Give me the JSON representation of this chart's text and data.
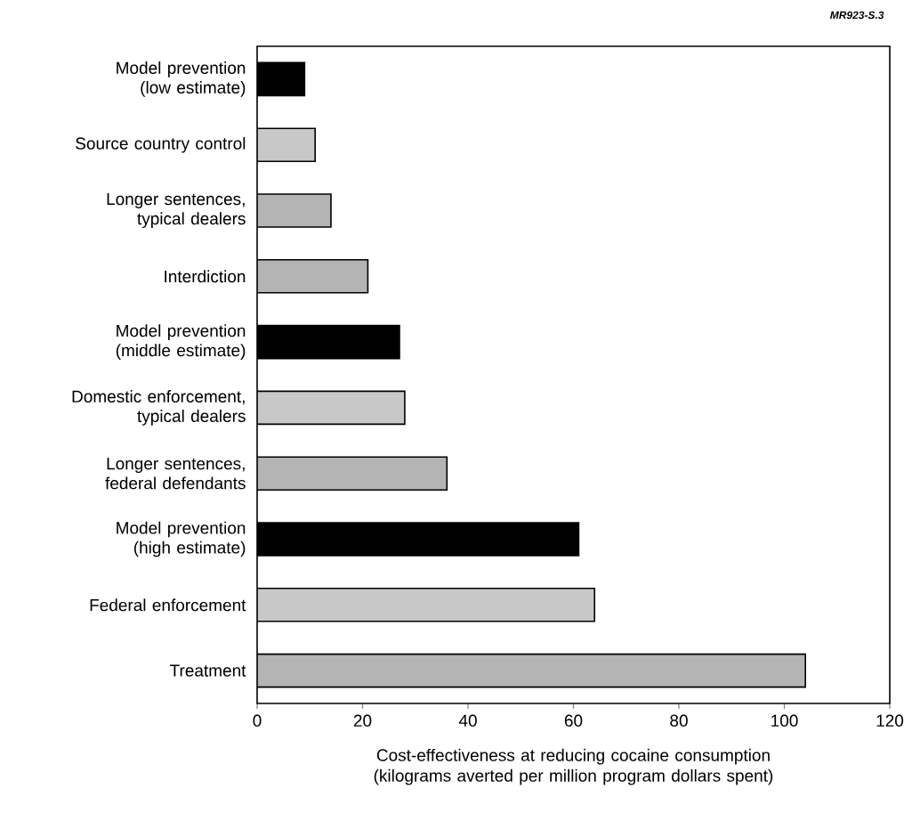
{
  "chart_data": {
    "type": "bar",
    "orientation": "horizontal",
    "categories": [
      "Model prevention (low estimate)",
      "Source country control",
      "Longer sentences, typical dealers",
      "Interdiction",
      "Model prevention (middle estimate)",
      "Domestic enforcement, typical dealers",
      "Longer sentences, federal defendants",
      "Model prevention (high estimate)",
      "Federal enforcement",
      "Treatment"
    ],
    "values": [
      9,
      11,
      14,
      21,
      27,
      28,
      36,
      61,
      64,
      104
    ],
    "colors": [
      "#000000",
      "#c8c8c8",
      "#b4b4b4",
      "#b4b4b4",
      "#000000",
      "#c8c8c8",
      "#b4b4b4",
      "#000000",
      "#c8c8c8",
      "#b4b4b4"
    ],
    "xlim": [
      0,
      120
    ],
    "xticks": [
      0,
      20,
      40,
      60,
      80,
      100,
      120
    ],
    "xlabel": "Cost-effectiveness at reducing cocaine consumption (kilograms averted per million program dollars spent)",
    "annotations": [
      "MR923-S.3"
    ]
  }
}
